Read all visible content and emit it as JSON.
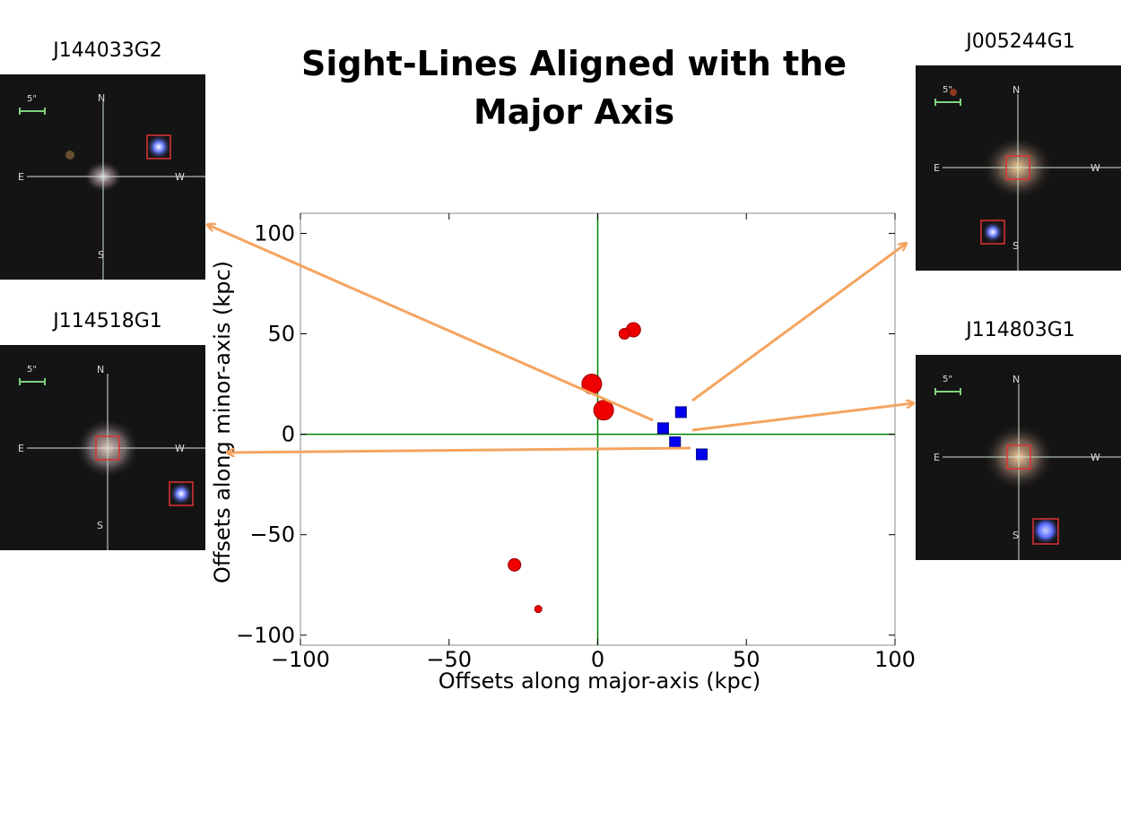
{
  "title_line1": "Sight-Lines Aligned with the",
  "title_line2": "Major Axis",
  "thumbnails": [
    {
      "label": "J144033G2",
      "scale": "5\"",
      "n": "N",
      "s": "S",
      "e": "E",
      "w": "W"
    },
    {
      "label": "J114518G1",
      "scale": "5\"",
      "n": "N",
      "s": "S",
      "e": "E",
      "w": "W"
    },
    {
      "label": "J005244G1",
      "scale": "5\"",
      "n": "N",
      "s": "S",
      "e": "E",
      "w": "W"
    },
    {
      "label": "J114803G1",
      "scale": "5\"",
      "n": "N",
      "s": "S",
      "e": "E",
      "w": "W"
    }
  ],
  "colors": {
    "circle": "#ee0000",
    "square": "#0000ee",
    "axis_lines": "#008000",
    "arrow": "#f4a460"
  },
  "chart_data": {
    "type": "scatter",
    "title": "",
    "xlabel": "Offsets along major-axis (kpc)",
    "ylabel": "Offsets along minor-axis (kpc)",
    "xlim": [
      -100,
      100
    ],
    "ylim": [
      -105,
      110
    ],
    "xticks": [
      -100,
      -50,
      0,
      50,
      100
    ],
    "yticks": [
      -100,
      -50,
      0,
      50,
      100
    ],
    "xtick_labels": [
      "−100",
      "−50",
      "0",
      "50",
      "100"
    ],
    "ytick_labels": [
      "−100",
      "−50",
      "0",
      "50",
      "100"
    ],
    "grid": false,
    "zero_lines": true,
    "series": [
      {
        "marker": "circle",
        "color": "#ee0000",
        "points": [
          {
            "x": 12,
            "y": 52,
            "size": 8
          },
          {
            "x": 9,
            "y": 50,
            "size": 6
          },
          {
            "x": -2,
            "y": 25,
            "size": 11
          },
          {
            "x": 2,
            "y": 12,
            "size": 11
          },
          {
            "x": -28,
            "y": -65,
            "size": 7
          },
          {
            "x": -20,
            "y": -87,
            "size": 4
          }
        ]
      },
      {
        "marker": "square",
        "color": "#0000ee",
        "points": [
          {
            "x": 28,
            "y": 11
          },
          {
            "x": 22,
            "y": 3
          },
          {
            "x": 26,
            "y": -4
          },
          {
            "x": 35,
            "y": -10
          }
        ]
      }
    ]
  }
}
